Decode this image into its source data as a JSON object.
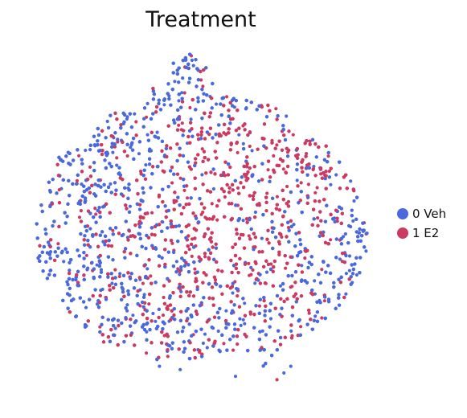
{
  "chart_data": {
    "type": "scatter",
    "title": "Treatment",
    "xlabel": "",
    "ylabel": "",
    "grid": false,
    "axes_visible": false,
    "legend_placement": "right",
    "series": [
      {
        "name": "0 Veh",
        "color": "#4a69dc"
      },
      {
        "name": "1 E2",
        "color": "#cc3a62"
      }
    ],
    "density_regions": {
      "note_units": "UMAP embedding units (arbitrary), x: 0-100 left-to-right, y: 0-100 bottom-to-top",
      "0 Veh_clusters": [
        {
          "cx": 47,
          "cy": 88,
          "weight": 1.0
        },
        {
          "cx": 28,
          "cy": 72,
          "weight": 1.1
        },
        {
          "cx": 30,
          "cy": 40,
          "weight": 1.6
        },
        {
          "cx": 18,
          "cy": 55,
          "weight": 1.2
        },
        {
          "cx": 80,
          "cy": 30,
          "weight": 1.1
        },
        {
          "cx": 60,
          "cy": 22,
          "weight": 0.9
        },
        {
          "cx": 88,
          "cy": 48,
          "weight": 0.8
        },
        {
          "cx": 12,
          "cy": 38,
          "weight": 0.9
        }
      ],
      "1 E2_clusters": [
        {
          "cx": 50,
          "cy": 62,
          "weight": 1.8
        },
        {
          "cx": 63,
          "cy": 60,
          "weight": 1.5
        },
        {
          "cx": 75,
          "cy": 48,
          "weight": 1.2
        },
        {
          "cx": 40,
          "cy": 42,
          "weight": 1.1
        },
        {
          "cx": 63,
          "cy": 35,
          "weight": 1.0
        },
        {
          "cx": 15,
          "cy": 62,
          "weight": 0.7
        },
        {
          "cx": 38,
          "cy": 22,
          "weight": 0.7
        }
      ]
    }
  }
}
